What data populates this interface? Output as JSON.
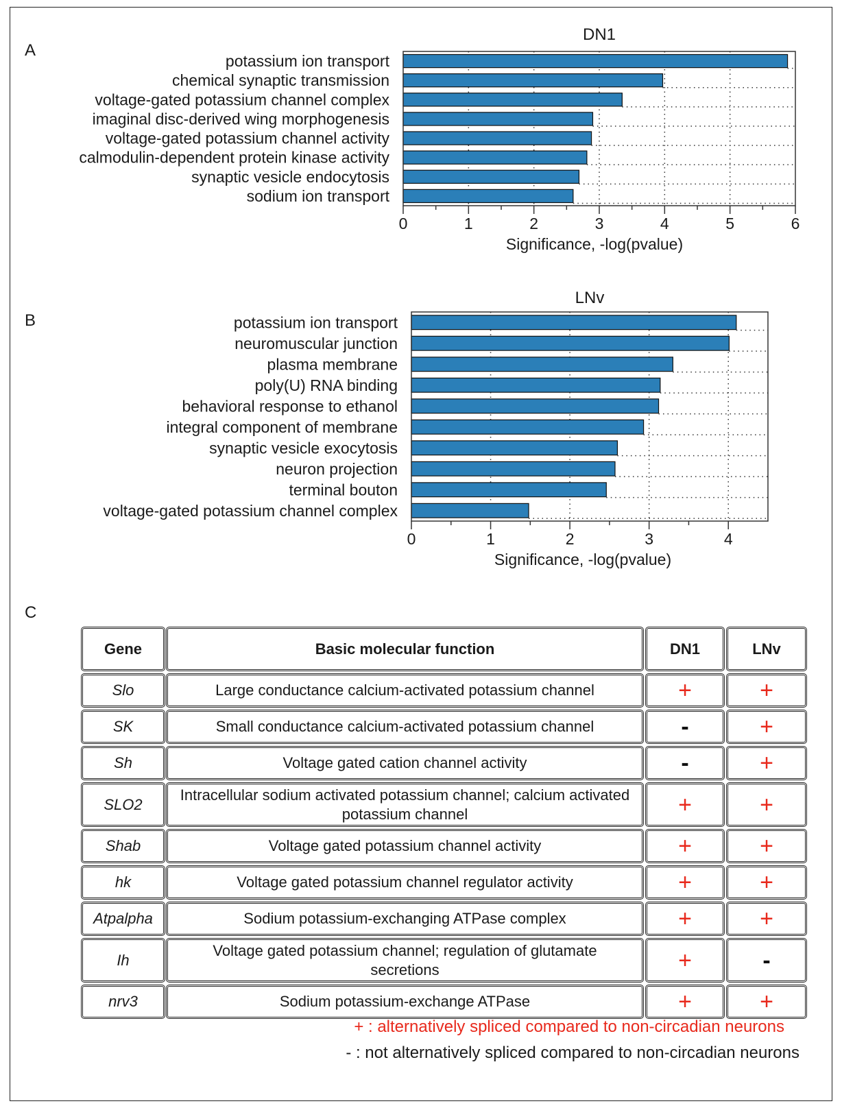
{
  "panel_labels": {
    "a": "A",
    "b": "B",
    "c": "C"
  },
  "chart_data": [
    {
      "type": "bar",
      "orientation": "horizontal",
      "title": "DN1",
      "xlabel": "Significance, -log(pvalue)",
      "categories": [
        "potassium ion transport",
        "chemical synaptic transmission",
        "voltage-gated potassium channel complex",
        "imaginal disc-derived wing morphogenesis",
        "voltage-gated potassium channel activity",
        "calmodulin-dependent protein kinase activity",
        "synaptic vesicle endocytosis",
        "sodium ion transport"
      ],
      "values": [
        5.88,
        3.97,
        3.35,
        2.9,
        2.88,
        2.81,
        2.69,
        2.6
      ],
      "xlim": [
        0,
        6
      ],
      "xticks": [
        0,
        1,
        2,
        3,
        4,
        5,
        6
      ],
      "bar_color": "#2b7fb8",
      "grid": "dotted"
    },
    {
      "type": "bar",
      "orientation": "horizontal",
      "title": "LNv",
      "xlabel": "Significance, -log(pvalue)",
      "categories": [
        "potassium ion transport",
        "neuromuscular junction",
        "plasma membrane",
        "poly(U) RNA binding",
        "behavioral response to ethanol",
        "integral component of membrane",
        "synaptic vesicle exocytosis",
        "neuron projection",
        "terminal bouton",
        "voltage-gated potassium channel complex"
      ],
      "values": [
        4.1,
        4.01,
        3.3,
        3.14,
        3.12,
        2.93,
        2.6,
        2.57,
        2.46,
        1.48
      ],
      "xlim": [
        0,
        4.5
      ],
      "xticks": [
        0,
        1,
        2,
        3,
        4
      ],
      "bar_color": "#2b7fb8",
      "grid": "dotted"
    }
  ],
  "table": {
    "headers": [
      "Gene",
      "Basic molecular function",
      "DN1",
      "LNv"
    ],
    "rows": [
      {
        "gene": "Slo",
        "function": "Large conductance calcium-activated potassium channel",
        "dn1": "+",
        "lnv": "+"
      },
      {
        "gene": "SK",
        "function": "Small conductance calcium-activated potassium channel",
        "dn1": "-",
        "lnv": "+"
      },
      {
        "gene": "Sh",
        "function": "Voltage gated cation channel activity",
        "dn1": "-",
        "lnv": "+"
      },
      {
        "gene": "SLO2",
        "function": "Intracellular sodium activated potassium channel; calcium activated potassium channel",
        "dn1": "+",
        "lnv": "+"
      },
      {
        "gene": "Shab",
        "function": "Voltage gated potassium channel activity",
        "dn1": "+",
        "lnv": "+"
      },
      {
        "gene": "hk",
        "function": "Voltage gated potassium channel regulator activity",
        "dn1": "+",
        "lnv": "+"
      },
      {
        "gene": "Atpalpha",
        "function": "Sodium potassium-exchanging ATPase complex",
        "dn1": "+",
        "lnv": "+"
      },
      {
        "gene": "Ih",
        "function": "Voltage gated potassium channel; regulation of glutamate secretions",
        "dn1": "+",
        "lnv": "-"
      },
      {
        "gene": "nrv3",
        "function": "Sodium potassium-exchange ATPase",
        "dn1": "+",
        "lnv": "+"
      }
    ]
  },
  "legend": {
    "plus": "+ : alternatively spliced compared to non-circadian neurons",
    "minus": "- : not alternatively spliced compared to non-circadian neurons",
    "plus_color": "#e8291c"
  }
}
